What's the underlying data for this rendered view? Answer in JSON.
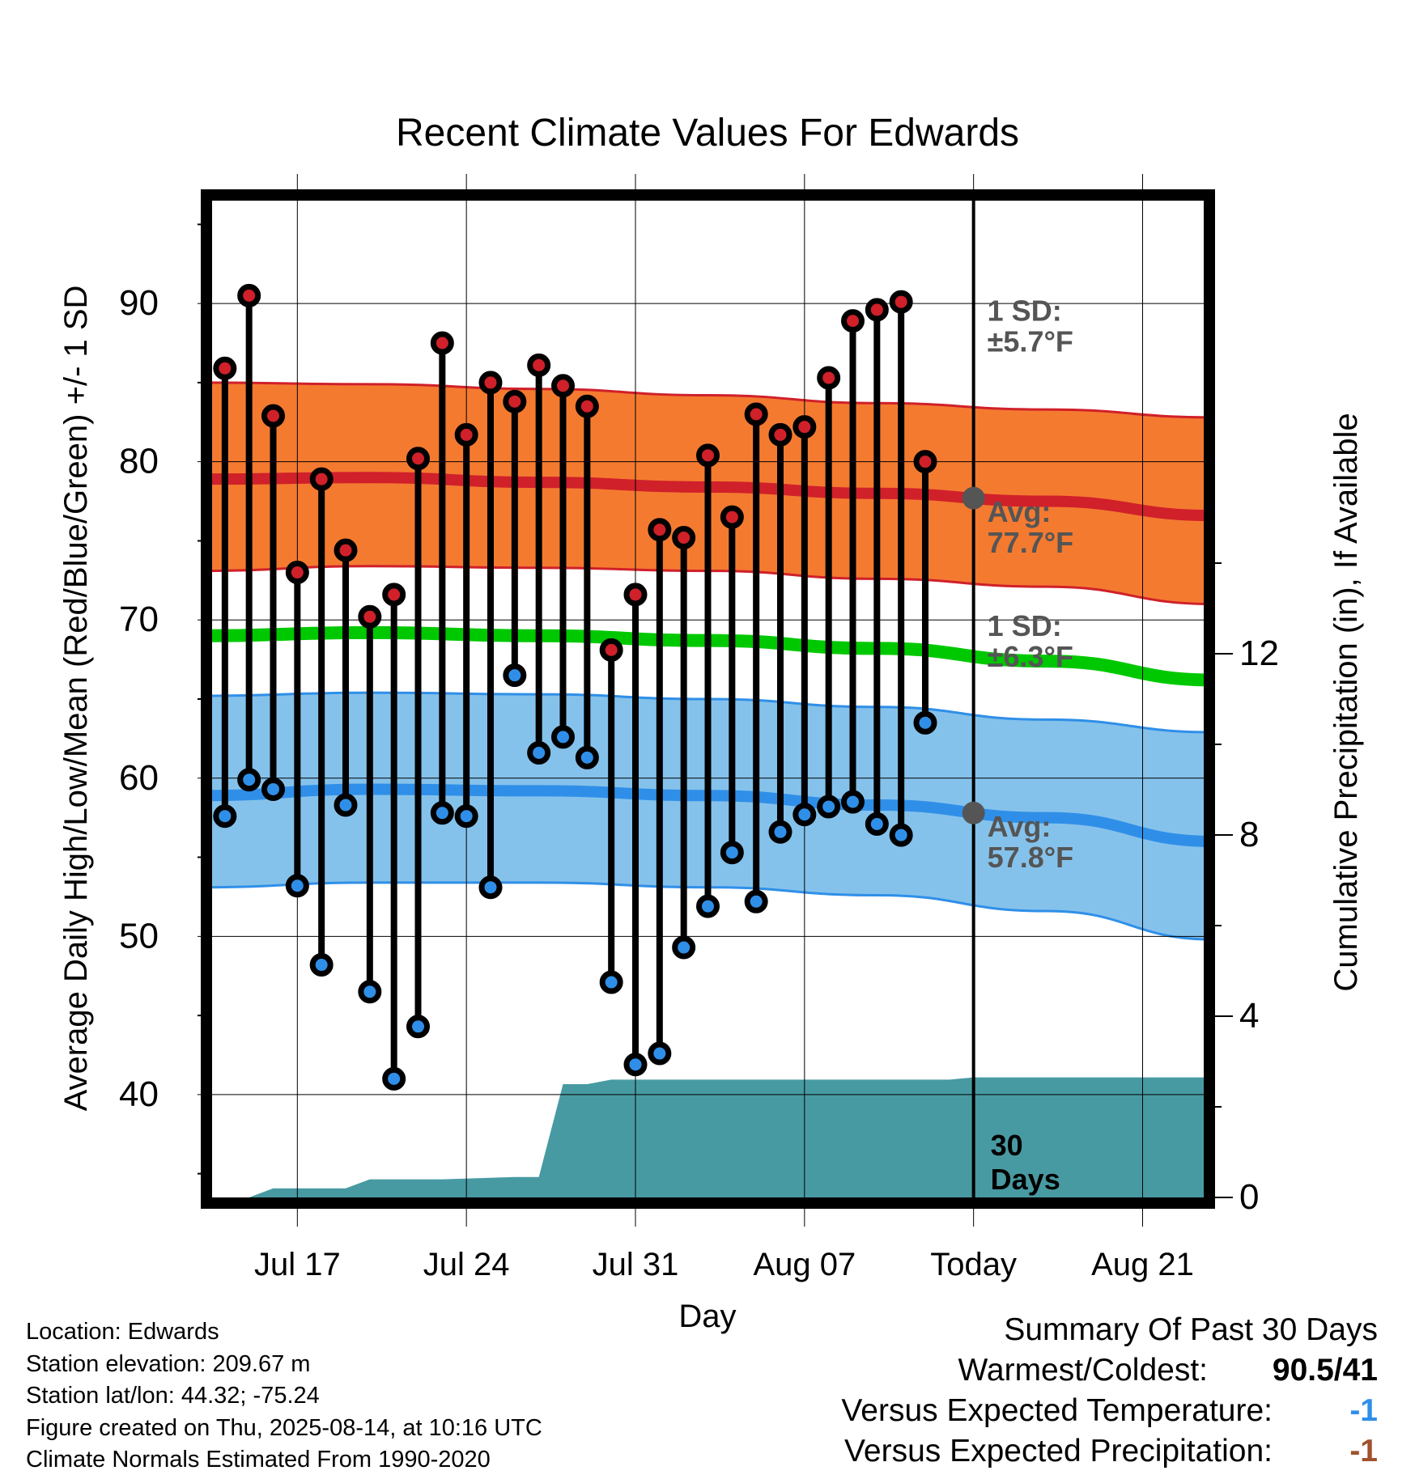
{
  "chart_data": {
    "type": "line",
    "title": "Recent Climate Values For Edwards",
    "xlabel": "Day",
    "ylabel_left": "Average Daily High/Low/Mean (Red/Blue/Green) +/- 1 SD",
    "ylabel_right": "Cumulative Precipitation (in), If Available",
    "x_tick_labels": [
      "Jul 17",
      "Jul 24",
      "Jul 31",
      "Aug 07",
      "Today",
      "Aug 21"
    ],
    "y_left_ticks": [
      40,
      50,
      60,
      70,
      80,
      90
    ],
    "y_right_ticks": [
      0,
      4,
      8,
      12
    ],
    "ylim_left": [
      33.5,
      96.5
    ],
    "ylim_right": [
      0,
      22
    ],
    "xlim": [
      "2025-07-13",
      "2025-08-24"
    ],
    "today": "2025-08-14",
    "today_label": "Today",
    "grid": true,
    "dates": [
      "2025-07-14",
      "2025-07-15",
      "2025-07-16",
      "2025-07-17",
      "2025-07-18",
      "2025-07-19",
      "2025-07-20",
      "2025-07-21",
      "2025-07-22",
      "2025-07-23",
      "2025-07-24",
      "2025-07-25",
      "2025-07-26",
      "2025-07-27",
      "2025-07-28",
      "2025-07-29",
      "2025-07-30",
      "2025-07-31",
      "2025-08-01",
      "2025-08-02",
      "2025-08-03",
      "2025-08-04",
      "2025-08-05",
      "2025-08-06",
      "2025-08-07",
      "2025-08-08",
      "2025-08-09",
      "2025-08-10",
      "2025-08-11",
      "2025-08-12",
      "2025-08-13"
    ],
    "series": [
      {
        "name": "High",
        "color": "#d0202a",
        "values": [
          85.9,
          90.5,
          82.9,
          73.0,
          78.9,
          74.4,
          70.2,
          71.6,
          80.2,
          87.5,
          81.7,
          85.0,
          83.8,
          86.1,
          84.8,
          83.5,
          68.1,
          71.6,
          75.7,
          75.2,
          80.4,
          76.5,
          83.0,
          81.7,
          82.2,
          85.3,
          88.9,
          89.6,
          90.1,
          80.0,
          null
        ]
      },
      {
        "name": "Low",
        "color": "#2f8fe8",
        "values": [
          57.6,
          59.9,
          59.3,
          53.2,
          48.2,
          58.3,
          46.5,
          41.0,
          44.3,
          57.8,
          57.6,
          53.1,
          66.5,
          61.6,
          62.6,
          61.3,
          47.1,
          41.9,
          42.6,
          49.3,
          51.9,
          55.3,
          52.2,
          56.6,
          57.7,
          58.2,
          58.5,
          57.1,
          56.4,
          63.5,
          null
        ]
      }
    ],
    "normals": {
      "dates": [
        "2025-07-13",
        "2025-07-20",
        "2025-07-27",
        "2025-08-03",
        "2025-08-10",
        "2025-08-17",
        "2025-08-24"
      ],
      "high_mean": [
        78.9,
        79.0,
        78.7,
        78.4,
        78.0,
        77.5,
        76.6
      ],
      "high_upper": [
        85.0,
        84.9,
        84.6,
        84.2,
        83.7,
        83.3,
        82.8
      ],
      "high_lower": [
        73.1,
        73.4,
        73.3,
        73.1,
        72.6,
        72.1,
        71.0
      ],
      "low_mean": [
        58.9,
        59.3,
        59.2,
        58.9,
        58.3,
        57.5,
        56.0
      ],
      "low_upper": [
        65.2,
        65.4,
        65.3,
        65.0,
        64.5,
        63.7,
        62.9
      ],
      "low_lower": [
        53.1,
        53.4,
        53.4,
        53.1,
        52.6,
        51.6,
        49.8
      ],
      "avg_mean": [
        69.0,
        69.2,
        69.0,
        68.7,
        68.2,
        67.4,
        66.2
      ]
    },
    "precip": {
      "dates": [
        "2025-07-13",
        "2025-07-15",
        "2025-07-16",
        "2025-07-19",
        "2025-07-20",
        "2025-07-23",
        "2025-07-26",
        "2025-07-27",
        "2025-07-28",
        "2025-07-29",
        "2025-07-30",
        "2025-08-13",
        "2025-08-14",
        "2025-08-24"
      ],
      "values": [
        0,
        0,
        0.2,
        0.2,
        0.4,
        0.4,
        0.45,
        0.45,
        2.5,
        2.5,
        2.6,
        2.6,
        2.65,
        2.65
      ]
    },
    "annotations": {
      "high_sd": [
        "1 SD:",
        "±5.7°F"
      ],
      "high_avg": [
        "Avg:",
        "77.7°F"
      ],
      "low_sd": [
        "1 SD:",
        "±6.3°F"
      ],
      "low_avg": [
        "Avg:",
        "57.8°F"
      ],
      "high_avg_value": 77.7,
      "low_avg_value": 57.8,
      "window": [
        "30",
        "Days"
      ]
    },
    "colors": {
      "high_band": "#f47a30",
      "high_line": "#d0202a",
      "low_band": "#85c2eb",
      "low_line": "#2f8fe8",
      "mean_line": "#00c800",
      "precip": "#489aa2",
      "annotation": "#555555",
      "marker_high": "#d0202a",
      "marker_low": "#2f8fe8"
    }
  },
  "footer": {
    "location": "Location: Edwards",
    "elevation": "Station elevation: 209.67 m",
    "latlon": "Station lat/lon: 44.32; -75.24",
    "created": "Figure created on Thu, 2025-08-14, at 10:16 UTC",
    "normals": "Climate Normals Estimated From 1990-2020"
  },
  "summary": {
    "heading": "Summary Of Past 30 Days",
    "warm_cold_label": "Warmest/Coldest:",
    "warm_cold_value": "90.5/41",
    "temp_label": "Versus Expected Temperature:",
    "temp_value": "-1",
    "temp_color": "#2f8fe8",
    "precip_label": "Versus Expected Precipitation:",
    "precip_value": "-1",
    "precip_color": "#a0522d"
  }
}
